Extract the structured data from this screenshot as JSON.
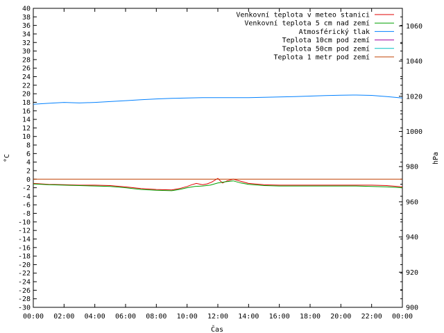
{
  "chart_data": {
    "type": "line",
    "xlabel": "Čas",
    "ylabel": "°C",
    "y2label": "hPa",
    "xlim": [
      0,
      24
    ],
    "x_ticks": [
      "00:00",
      "02:00",
      "04:00",
      "06:00",
      "08:00",
      "10:00",
      "12:00",
      "14:00",
      "16:00",
      "18:00",
      "20:00",
      "22:00",
      "00:00"
    ],
    "ylim": [
      -30,
      40
    ],
    "y_ticks": [
      40,
      38,
      36,
      34,
      32,
      30,
      28,
      26,
      24,
      22,
      20,
      18,
      16,
      14,
      12,
      10,
      8,
      6,
      4,
      2,
      0,
      -2,
      -4,
      -6,
      -8,
      -10,
      -12,
      -14,
      -16,
      -18,
      -20,
      -22,
      -24,
      -26,
      -28,
      -30
    ],
    "y2lim": [
      900,
      1070
    ],
    "y2_ticks": [
      1060,
      1040,
      1020,
      1000,
      980,
      960,
      940,
      920,
      900
    ],
    "grid": false,
    "legend_position": "top-right",
    "series": [
      {
        "name": "Venkovní teplota v meteo stanici",
        "color": "#e00000",
        "axis": "left",
        "x": [
          0,
          1,
          2,
          3,
          4,
          5,
          6,
          7,
          8,
          9,
          9.5,
          10,
          10.3,
          10.6,
          11,
          11.3,
          11.6,
          12,
          12.3,
          12.6,
          13,
          13.5,
          14,
          15,
          16,
          17,
          18,
          19,
          20,
          21,
          22,
          23,
          24
        ],
        "y": [
          -1.0,
          -1.2,
          -1.3,
          -1.4,
          -1.4,
          -1.5,
          -1.8,
          -2.2,
          -2.4,
          -2.5,
          -2.2,
          -1.7,
          -1.3,
          -1.0,
          -1.3,
          -1.1,
          -0.7,
          0.2,
          -0.9,
          -0.4,
          0.0,
          -0.5,
          -1.0,
          -1.3,
          -1.4,
          -1.4,
          -1.4,
          -1.4,
          -1.4,
          -1.4,
          -1.4,
          -1.5,
          -1.8
        ]
      },
      {
        "name": "Venkovní teplota 5 cm nad zemí",
        "color": "#00a000",
        "axis": "left",
        "x": [
          0,
          1,
          2,
          3,
          4,
          5,
          6,
          7,
          8,
          9,
          9.5,
          10,
          10.5,
          11,
          11.5,
          12,
          12.5,
          13,
          13.5,
          14,
          15,
          16,
          17,
          18,
          19,
          20,
          21,
          22,
          23,
          24
        ],
        "y": [
          -1.1,
          -1.3,
          -1.4,
          -1.5,
          -1.6,
          -1.7,
          -2.0,
          -2.4,
          -2.6,
          -2.7,
          -2.4,
          -2.0,
          -1.7,
          -1.6,
          -1.4,
          -0.9,
          -0.6,
          -0.4,
          -0.9,
          -1.2,
          -1.5,
          -1.6,
          -1.6,
          -1.6,
          -1.6,
          -1.6,
          -1.6,
          -1.7,
          -1.8,
          -2.0
        ]
      },
      {
        "name": "Atmosférický tlak",
        "color": "#0080ff",
        "axis": "right",
        "x": [
          0,
          1,
          2,
          3,
          4,
          5,
          6,
          7,
          8,
          9,
          10,
          11,
          12,
          13,
          14,
          15,
          16,
          17,
          18,
          19,
          20,
          21,
          22,
          23,
          24
        ],
        "y": [
          1015.5,
          1016.0,
          1016.5,
          1016.2,
          1016.5,
          1017.0,
          1017.5,
          1018.0,
          1018.5,
          1018.8,
          1019.0,
          1019.2,
          1019.2,
          1019.2,
          1019.2,
          1019.4,
          1019.6,
          1019.8,
          1020.1,
          1020.4,
          1020.6,
          1020.7,
          1020.5,
          1019.8,
          1019.0
        ]
      },
      {
        "name": "Teplota 10cm pod zemí",
        "color": "#a000a0",
        "axis": "left",
        "x": [],
        "y": []
      },
      {
        "name": "Teplota 50cm pod zemí",
        "color": "#00c0c0",
        "axis": "left",
        "x": [],
        "y": []
      },
      {
        "name": "Teplota 1 metr pod zemí",
        "color": "#c04000",
        "axis": "left",
        "x": [
          0,
          24
        ],
        "y": [
          0,
          0
        ]
      }
    ]
  }
}
